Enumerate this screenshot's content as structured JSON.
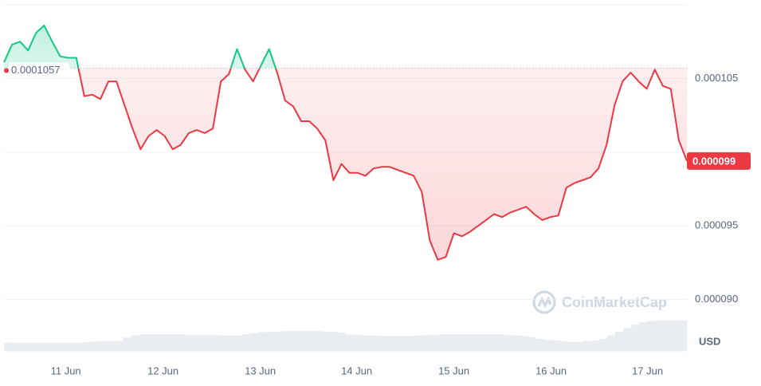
{
  "chart_data": {
    "type": "line",
    "values": [
      0.0001061,
      0.0001073,
      0.0001075,
      0.0001069,
      0.0001081,
      0.0001086,
      0.0001075,
      0.0001065,
      0.0001064,
      0.0001064,
      0.0001038,
      0.0001039,
      0.0001036,
      0.0001048,
      0.0001048,
      0.0001032,
      0.0001016,
      0.0001002,
      0.0001011,
      0.0001015,
      0.0001011,
      0.0001002,
      0.0001005,
      0.0001013,
      0.0001015,
      0.0001013,
      0.0001016,
      0.0001048,
      0.0001053,
      0.000107,
      0.0001056,
      0.0001048,
      0.0001059,
      0.000107,
      0.0001054,
      0.0001035,
      0.0001031,
      0.0001021,
      0.0001021,
      0.0001016,
      0.0001008,
      9.81e-05,
      9.92e-05,
      9.86e-05,
      9.86e-05,
      9.84e-05,
      9.89e-05,
      9.9e-05,
      9.9e-05,
      9.88e-05,
      9.86e-05,
      9.84e-05,
      9.73e-05,
      9.4e-05,
      9.27e-05,
      9.29e-05,
      9.45e-05,
      9.43e-05,
      9.46e-05,
      9.5e-05,
      9.54e-05,
      9.58e-05,
      9.56e-05,
      9.59e-05,
      9.61e-05,
      9.63e-05,
      9.58e-05,
      9.54e-05,
      9.56e-05,
      9.57e-05,
      9.76e-05,
      9.79e-05,
      9.81e-05,
      9.83e-05,
      9.89e-05,
      0.0001005,
      0.0001032,
      0.0001048,
      0.0001054,
      0.0001048,
      0.0001043,
      0.0001056,
      0.0001045,
      0.0001043,
      0.0001008,
      9.94e-05
    ],
    "volume": [
      15,
      15,
      15,
      15,
      15,
      15,
      15,
      15,
      15,
      15,
      16,
      17,
      18,
      18,
      18,
      24,
      28,
      30,
      30,
      30,
      30,
      30,
      30,
      29,
      29,
      29,
      29,
      28,
      28,
      28,
      30,
      32,
      34,
      35,
      35,
      36,
      36,
      36,
      36,
      36,
      35,
      35,
      33,
      30,
      29,
      28,
      28,
      27,
      27,
      27,
      27,
      27,
      28,
      29,
      29,
      30,
      30,
      30,
      30,
      30,
      30,
      30,
      30,
      29,
      28,
      27,
      25,
      22,
      20,
      19,
      17,
      16,
      16,
      18,
      19,
      22,
      28,
      35,
      42,
      48,
      52,
      54,
      55,
      55,
      55,
      55
    ],
    "baseline": 0.0001057,
    "current_price": 9.9e-05,
    "up_color": "#16c784",
    "down_color": "#ea3943",
    "xlim": [
      0,
      85
    ],
    "xticks": [
      {
        "value": 7.7,
        "label": "11 Jun"
      },
      {
        "value": 19.8,
        "label": "12 Jun"
      },
      {
        "value": 31.9,
        "label": "13 Jun"
      },
      {
        "value": 43.9,
        "label": "14 Jun"
      },
      {
        "value": 56,
        "label": "15 Jun"
      },
      {
        "value": 68.1,
        "label": "16 Jun"
      },
      {
        "value": 80.1,
        "label": "17 Jun"
      }
    ],
    "ylim": [
      8.89e-05,
      0.00011
    ],
    "yticks": [
      {
        "value": 0.000105,
        "label": "0.000105"
      },
      {
        "value": 9.5e-05,
        "label": "0.000095"
      },
      {
        "value": 9e-05,
        "label": "0.000090"
      }
    ],
    "gridlines": [
      0.000105,
      0.0001,
      9.5e-05,
      9e-05
    ],
    "currency": "USD",
    "watermark": "CoinMarketCap"
  }
}
